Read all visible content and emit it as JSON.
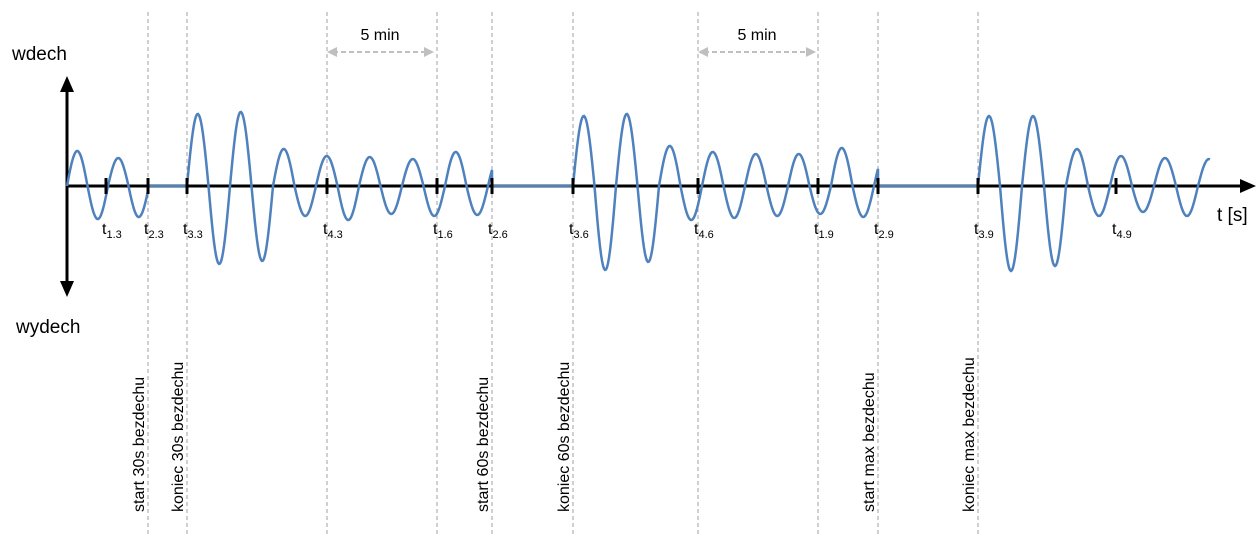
{
  "axis": {
    "y_top_label": "wdech",
    "y_bottom_label": "wydech",
    "x_label": "t [s]"
  },
  "ticks": [
    {
      "main": "t",
      "sub": "1.3"
    },
    {
      "main": "t",
      "sub": "2.3"
    },
    {
      "main": "t",
      "sub": "3.3"
    },
    {
      "main": "t",
      "sub": "4.3"
    },
    {
      "main": "t",
      "sub": "1.6"
    },
    {
      "main": "t",
      "sub": "2.6"
    },
    {
      "main": "t",
      "sub": "3.6"
    },
    {
      "main": "t",
      "sub": "4.6"
    },
    {
      "main": "t",
      "sub": "1.9"
    },
    {
      "main": "t",
      "sub": "2.9"
    },
    {
      "main": "t",
      "sub": "3.9"
    },
    {
      "main": "t",
      "sub": "4.9"
    }
  ],
  "event_labels": [
    "start 30s bezdechu",
    "koniec 30s bezdechu",
    "start 60s bezdechu",
    "koniec 60s bezdechu",
    "start max bezdechu",
    "koniec max bezdechu"
  ],
  "intervals": [
    {
      "label": "5 min"
    },
    {
      "label": "5 min"
    }
  ],
  "colors": {
    "wave": "#4f81bd",
    "axis": "#000000",
    "guide": "#a0a0a0",
    "interval_arrow": "#bfbfbf"
  }
}
